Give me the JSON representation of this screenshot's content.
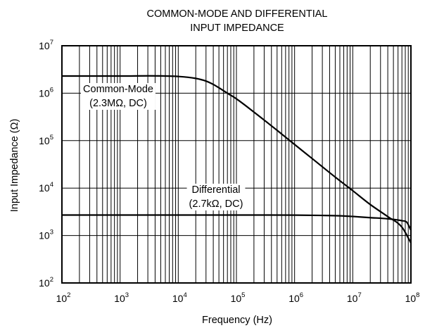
{
  "chart_data": {
    "type": "line",
    "title": [
      "COMMON-MODE AND DIFFERENTIAL",
      "INPUT IMPEDANCE"
    ],
    "xlabel": "Frequency (Hz)",
    "ylabel": "Input Impedance (Ω)",
    "x_scale": "log",
    "y_scale": "log",
    "xlim": [
      100,
      100000000
    ],
    "ylim": [
      100,
      10000000
    ],
    "grid": true,
    "x_ticks": [
      {
        "value": 100,
        "base": "10",
        "exp": "2"
      },
      {
        "value": 1000,
        "base": "10",
        "exp": "3"
      },
      {
        "value": 10000,
        "base": "10",
        "exp": "4"
      },
      {
        "value": 100000,
        "base": "10",
        "exp": "5"
      },
      {
        "value": 1000000,
        "base": "10",
        "exp": "6"
      },
      {
        "value": 10000000,
        "base": "10",
        "exp": "7"
      },
      {
        "value": 100000000,
        "base": "10",
        "exp": "8"
      }
    ],
    "y_ticks": [
      {
        "value": 100,
        "base": "10",
        "exp": "2"
      },
      {
        "value": 1000,
        "base": "10",
        "exp": "3"
      },
      {
        "value": 10000,
        "base": "10",
        "exp": "4"
      },
      {
        "value": 100000,
        "base": "10",
        "exp": "5"
      },
      {
        "value": 1000000,
        "base": "10",
        "exp": "6"
      },
      {
        "value": 10000000,
        "base": "10",
        "exp": "7"
      }
    ],
    "series": [
      {
        "name": "Common-Mode",
        "x": [
          100,
          1000,
          10000,
          20000,
          30000,
          40000,
          50000,
          70000,
          100000,
          200000,
          500000,
          1000000,
          2000000,
          5000000,
          10000000,
          20000000,
          40000000,
          70000000,
          100000000
        ],
        "y": [
          2300000,
          2300000,
          2250000,
          2050000,
          1800000,
          1530000,
          1300000,
          1000000,
          760000,
          400000,
          165000,
          83000,
          42000,
          17000,
          8800,
          4500,
          2500,
          1500,
          700
        ]
      },
      {
        "name": "Differential",
        "x": [
          100,
          1000,
          10000,
          100000,
          1000000,
          3000000,
          6000000,
          10000000,
          20000000,
          40000000,
          70000000,
          85000000,
          100000000
        ],
        "y": [
          2700,
          2700,
          2700,
          2700,
          2690,
          2650,
          2600,
          2520,
          2380,
          2250,
          2050,
          1900,
          1300
        ]
      }
    ],
    "annotations": [
      {
        "series": "Common-Mode",
        "lines": [
          "Common-Mode",
          "(2.3MΩ, DC)"
        ]
      },
      {
        "series": "Differential",
        "lines": [
          "Differential",
          "(2.7kΩ, DC)"
        ]
      }
    ]
  }
}
